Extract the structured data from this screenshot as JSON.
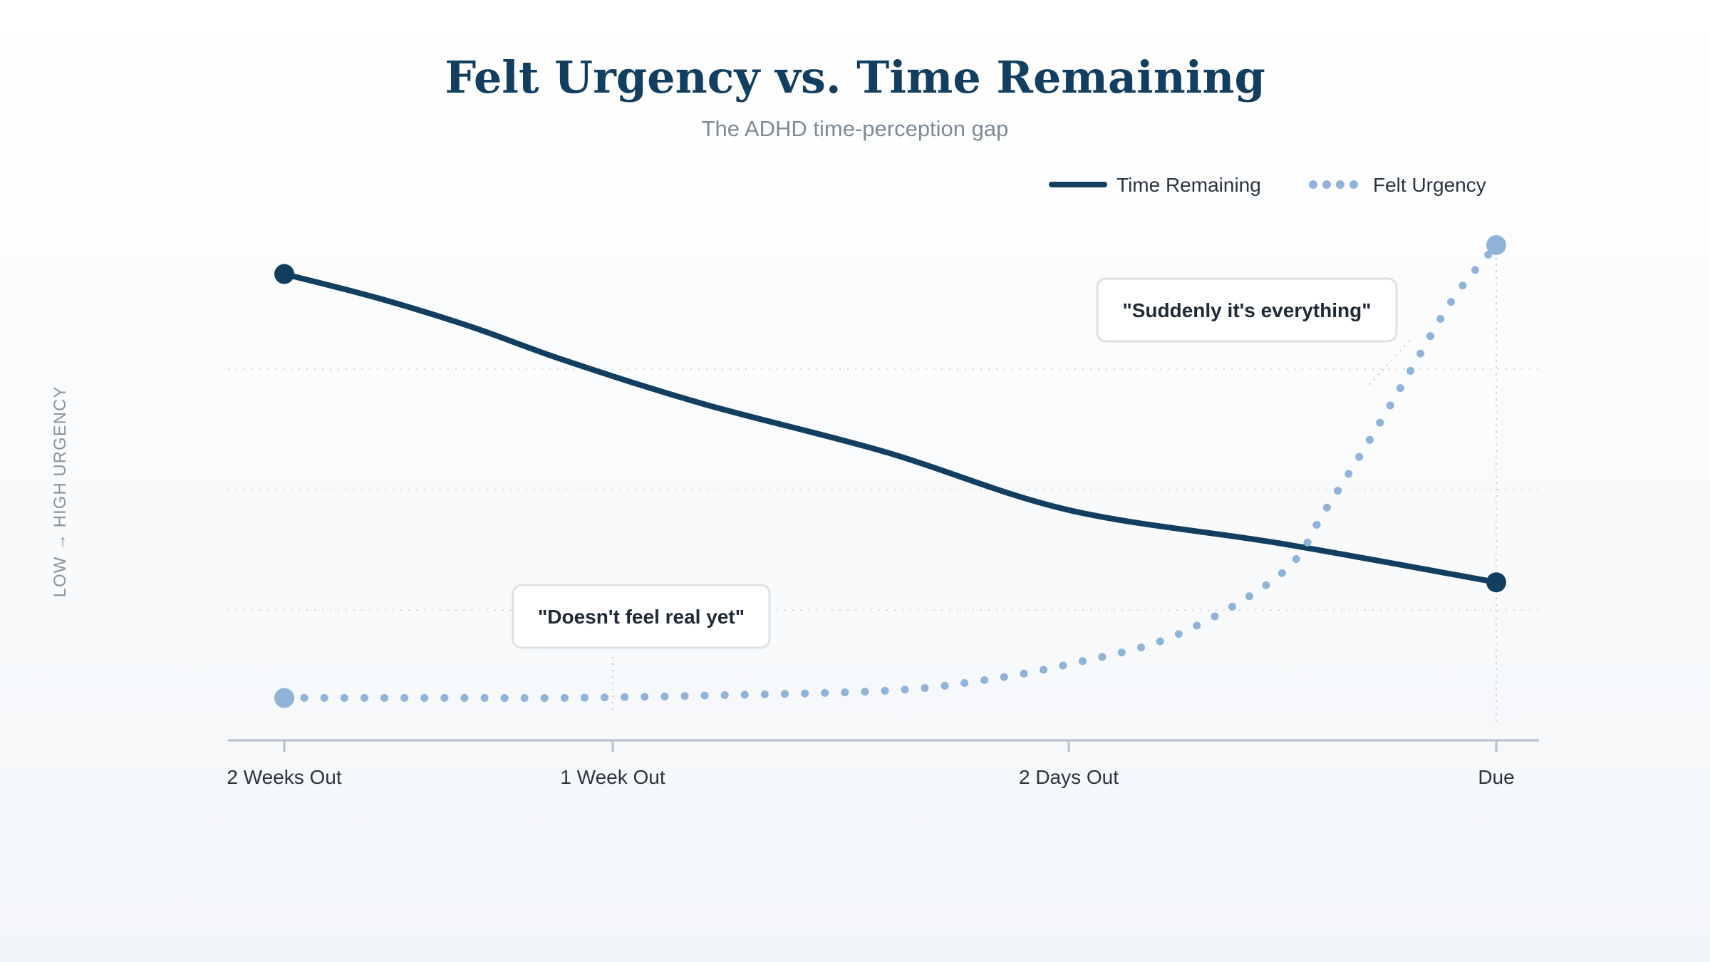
{
  "colors": {
    "title": "#123f5f",
    "subtitle": "#7f8a96",
    "time_remaining": "#123f5f",
    "felt_urgency": "#8fb3d9",
    "axis": "#b5c0cc",
    "grid": "#d3d9df",
    "tick_text": "#2b3440",
    "ylabel_text": "#8a949e",
    "annotation_border": "#dde2e7",
    "annotation_text": "#1f2a36"
  },
  "chart_data": {
    "type": "line",
    "title": "Felt Urgency vs. Time Remaining",
    "subtitle": "The ADHD time-perception gap",
    "xlabel": "",
    "ylabel": "LOW → HIGH URGENCY",
    "x_ticks": [
      {
        "label": "2 Weeks Out",
        "x": 14
      },
      {
        "label": "1 Week Out",
        "x": 7
      },
      {
        "label": "2 Days Out",
        "x": 2
      },
      {
        "label": "Due",
        "x": 0
      }
    ],
    "xlim": [
      14,
      0
    ],
    "ylim": [
      0,
      100
    ],
    "grid": {
      "horizontal": true,
      "values": [
        25,
        50,
        75
      ]
    },
    "legend": {
      "position": "top-right"
    },
    "series": [
      {
        "name": "Time Remaining",
        "style": "solid",
        "x": [
          14,
          12,
          10,
          8,
          6,
          4,
          2,
          1,
          0
        ],
        "values": [
          94,
          89,
          83,
          76,
          67,
          57,
          45,
          38,
          30
        ]
      },
      {
        "name": "Felt Urgency",
        "style": "dotted",
        "x": [
          14,
          12,
          10,
          8,
          6,
          4,
          3,
          2,
          1.5,
          1,
          0.8,
          0.6,
          0.4,
          0.2,
          0
        ],
        "values": [
          6,
          6,
          6,
          6,
          6.5,
          7.5,
          9.5,
          13,
          19,
          32,
          45,
          59,
          74,
          89,
          100
        ]
      }
    ],
    "annotations": [
      {
        "text": "\"Doesn't feel real yet\"",
        "x": 7,
        "y": 6
      },
      {
        "text": "\"Suddenly it's everything\"",
        "x": 0.2,
        "y": 87
      }
    ]
  }
}
